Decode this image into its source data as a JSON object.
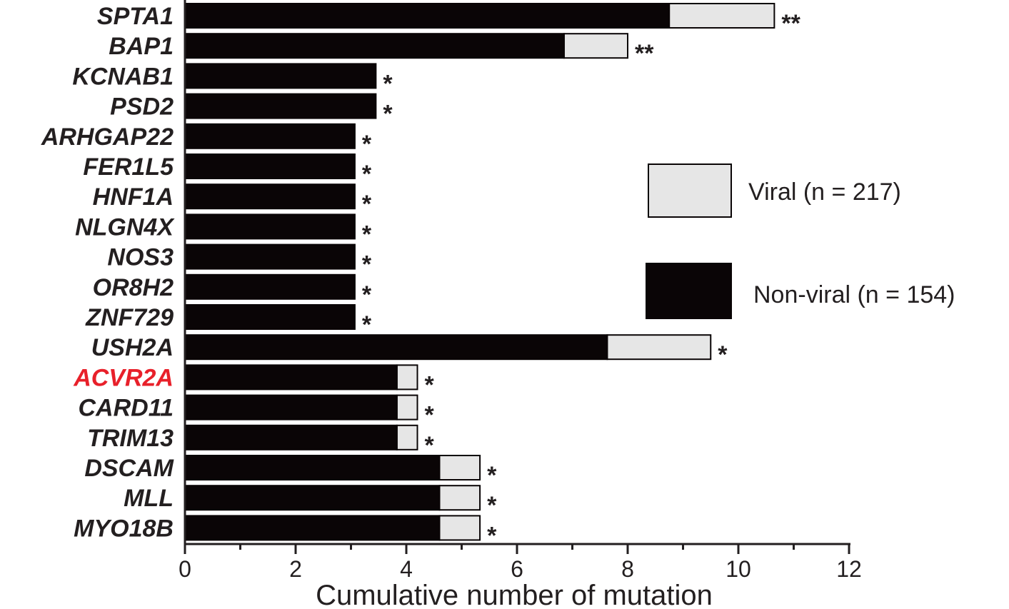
{
  "chart_data": {
    "type": "bar",
    "orientation": "horizontal",
    "stacked": true,
    "xlabel": "Cumulative number of mutation",
    "ylabel": "",
    "xlim": [
      0,
      12
    ],
    "xticks": [
      0,
      2,
      4,
      6,
      8,
      10,
      12
    ],
    "grid": false,
    "legend_position": "right",
    "categories": [
      "SPTA1",
      "BAP1",
      "KCNAB1",
      "PSD2",
      "ARHGAP22",
      "FER1L5",
      "HNF1A",
      "NLGN4X",
      "NOS3",
      "OR8H2",
      "ZNF729",
      "USH2A",
      "ACVR2A",
      "CARD11",
      "TRIM13",
      "DSCAM",
      "MLL",
      "MYO18B"
    ],
    "highlight_category": "ACVR2A",
    "highlight_color": "#e8202a",
    "series": [
      {
        "name": "Non-viral (n = 154)",
        "color": "#0a0506",
        "values": [
          8.75,
          6.85,
          3.45,
          3.45,
          3.07,
          3.07,
          3.07,
          3.07,
          3.07,
          3.07,
          3.07,
          7.63,
          3.83,
          3.83,
          3.83,
          4.6,
          4.6,
          4.6
        ]
      },
      {
        "name": "Viral (n = 217)",
        "color": "#e6e6e6",
        "values": [
          1.9,
          1.15,
          0,
          0,
          0,
          0,
          0,
          0,
          0,
          0,
          0,
          1.87,
          0.37,
          0.37,
          0.37,
          0.73,
          0.73,
          0.73
        ]
      }
    ],
    "annotations": [
      "**",
      "**",
      "*",
      "*",
      "*",
      "*",
      "*",
      "*",
      "*",
      "*",
      "*",
      "*",
      "*",
      "*",
      "*",
      "*",
      "*",
      "*"
    ]
  }
}
